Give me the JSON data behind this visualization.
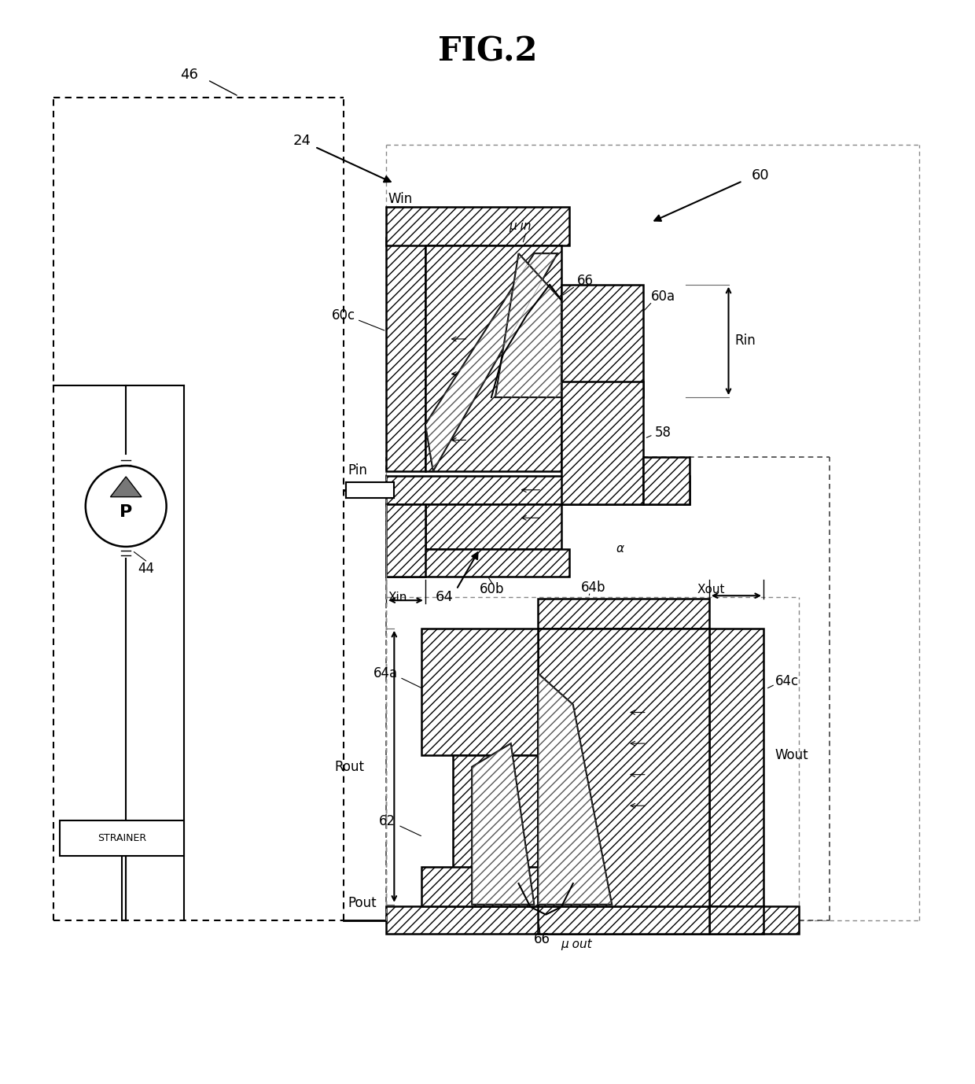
{
  "title": "FIG.2",
  "bg_color": "#ffffff",
  "fig_width": 12.4,
  "fig_height": 13.78,
  "labels": {
    "fig_title": "FIG.2",
    "l24": "24",
    "l44": "44",
    "l46": "46",
    "l58": "58",
    "l60": "60",
    "l60a": "60a",
    "l60b": "60b",
    "l60c": "60c",
    "l62": "62",
    "l64": "64",
    "l64a": "64a",
    "l64b": "64b",
    "l64c": "64c",
    "l66": "66",
    "lWin": "Win",
    "lWout": "Wout",
    "lXin": "Xin",
    "lXout": "Xout",
    "lRin": "Rin",
    "lRout": "Rout",
    "lPin": "Pin",
    "lPout": "Pout",
    "lmuin": "μ in",
    "lmuout": "μ out",
    "lalpha": "α",
    "lP": "P",
    "lSTRAINER": "STRAINER"
  }
}
